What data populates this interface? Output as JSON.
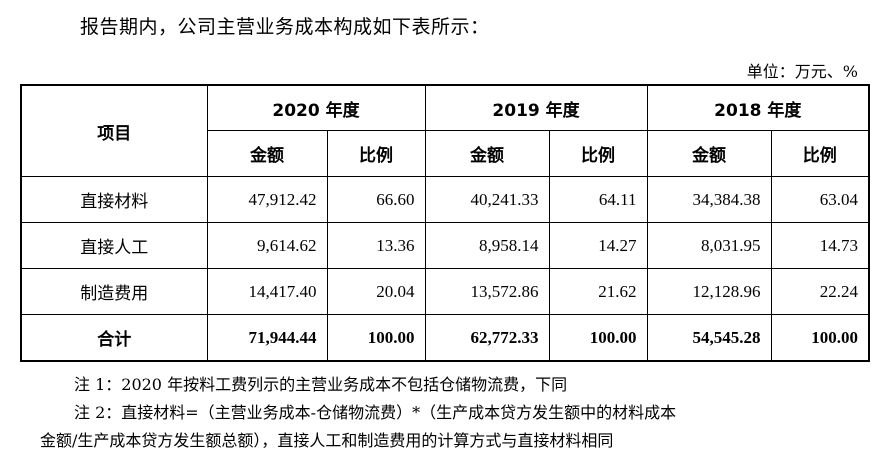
{
  "intro": "报告期内，公司主营业务成本构成如下表所示：",
  "unit": "单位：万元、%",
  "table": {
    "item_header": "项目",
    "years": [
      "2020 年度",
      "2019 年度",
      "2018 年度"
    ],
    "sub_headers": {
      "amount": "金额",
      "ratio": "比例"
    },
    "rows": [
      {
        "label": "直接材料",
        "values": [
          "47,912.42",
          "66.60",
          "40,241.33",
          "64.11",
          "34,384.38",
          "63.04"
        ]
      },
      {
        "label": "直接人工",
        "values": [
          "9,614.62",
          "13.36",
          "8,958.14",
          "14.27",
          "8,031.95",
          "14.73"
        ]
      },
      {
        "label": "制造费用",
        "values": [
          "14,417.40",
          "20.04",
          "13,572.86",
          "21.62",
          "12,128.96",
          "22.24"
        ]
      }
    ],
    "total": {
      "label": "合计",
      "values": [
        "71,944.44",
        "100.00",
        "62,772.33",
        "100.00",
        "54,545.28",
        "100.00"
      ]
    }
  },
  "notes": {
    "note1": "注 1：2020 年按料工费列示的主营业务成本不包括仓储物流费，下同",
    "note2_line1": "注 2：直接材料=（主营业务成本-仓储物流费）*（生产成本贷方发生额中的材料成本",
    "note2_line2": "金额/生产成本贷方发生额总额），直接人工和制造费用的计算方式与直接材料相同"
  }
}
